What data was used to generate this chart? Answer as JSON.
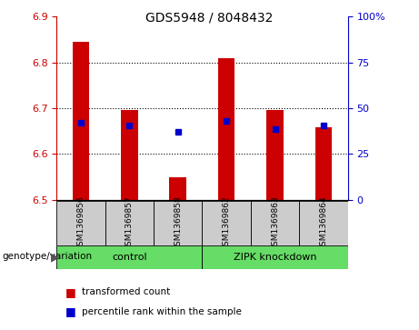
{
  "title": "GDS5948 / 8048432",
  "samples": [
    "GSM1369856",
    "GSM1369857",
    "GSM1369858",
    "GSM1369862",
    "GSM1369863",
    "GSM1369864"
  ],
  "bar_tops": [
    6.845,
    6.695,
    6.548,
    6.808,
    6.695,
    6.658
  ],
  "bar_bottom": 6.5,
  "blue_dot_y": [
    6.668,
    6.662,
    6.648,
    6.672,
    6.655,
    6.662
  ],
  "ylim_left": [
    6.5,
    6.9
  ],
  "yticks_left": [
    6.5,
    6.6,
    6.7,
    6.8,
    6.9
  ],
  "ylim_right": [
    0,
    100
  ],
  "yticks_right": [
    0,
    25,
    50,
    75,
    100
  ],
  "ytick_labels_right": [
    "0",
    "25",
    "50",
    "75",
    "100%"
  ],
  "bar_color": "#cc0000",
  "dot_color": "#0000cc",
  "tick_color_left": "#cc0000",
  "tick_color_right": "#0000cc",
  "legend_items": [
    {
      "label": "transformed count",
      "color": "#cc0000"
    },
    {
      "label": "percentile rank within the sample",
      "color": "#0000cc"
    }
  ],
  "tick_bg": "#cccccc",
  "green_color": "#66dd66"
}
